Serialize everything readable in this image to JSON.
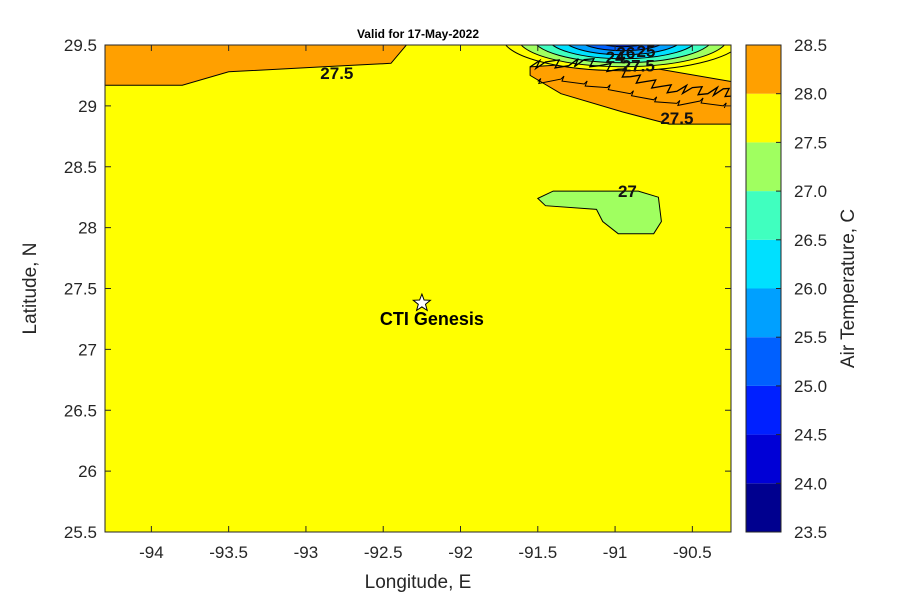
{
  "chart_data": {
    "type": "heatmap",
    "title": "Valid for 17-May-2022",
    "xlabel": "Longitude, E",
    "ylabel": "Latitude, N",
    "xlim": [
      -94.3,
      -90.25
    ],
    "ylim": [
      25.5,
      29.5
    ],
    "x_ticks": [
      -94,
      -93.5,
      -93,
      -92.5,
      -92,
      -91.5,
      -91,
      -90.5
    ],
    "y_ticks": [
      25.5,
      26,
      26.5,
      27,
      27.5,
      28,
      28.5,
      29,
      29.5
    ],
    "colorbar": {
      "label": "Air Temperature, C",
      "ticks": [
        23.5,
        24.0,
        24.5,
        25.0,
        25.5,
        26.0,
        26.5,
        27.0,
        27.5,
        28.0,
        28.5
      ],
      "tick_labels": [
        "23.5",
        "24.0",
        "24.5",
        "25.0",
        "25.5",
        "26.0",
        "26.5",
        "27.0",
        "27.5",
        "28.0",
        "28.5"
      ],
      "colors": [
        "#00008f",
        "#0000d6",
        "#0020ff",
        "#0060ff",
        "#00a0ff",
        "#00e0ff",
        "#40ffbf",
        "#a0ff60",
        "#ffff00",
        "#ffa000",
        "#ff5a00"
      ]
    },
    "background_level": "27.0–27.5",
    "regions": [
      {
        "level": "27.5–28.0",
        "color": "#ffa000",
        "polygon": [
          [
            -94.3,
            29.5
          ],
          [
            -92.35,
            29.5
          ],
          [
            -92.45,
            29.35
          ],
          [
            -92.9,
            29.32
          ],
          [
            -93.5,
            29.28
          ],
          [
            -93.8,
            29.17
          ],
          [
            -94.3,
            29.17
          ]
        ]
      },
      {
        "level": "27.5–28.0",
        "color": "#ffa000",
        "polygon": [
          [
            -91.55,
            29.32
          ],
          [
            -91.2,
            29.35
          ],
          [
            -90.8,
            29.32
          ],
          [
            -90.25,
            29.2
          ],
          [
            -90.25,
            28.85
          ],
          [
            -90.65,
            28.85
          ],
          [
            -90.95,
            28.95
          ],
          [
            -91.35,
            29.1
          ],
          [
            -91.55,
            29.25
          ]
        ]
      },
      {
        "level": "26.5–27.0",
        "color": "#a0ff60",
        "polygon": [
          [
            -91.4,
            28.3
          ],
          [
            -90.85,
            28.3
          ],
          [
            -90.72,
            28.25
          ],
          [
            -90.7,
            28.05
          ],
          [
            -90.75,
            27.95
          ],
          [
            -90.98,
            27.95
          ],
          [
            -91.08,
            28.05
          ],
          [
            -91.12,
            28.15
          ],
          [
            -91.45,
            28.18
          ],
          [
            -91.5,
            28.24
          ]
        ]
      }
    ],
    "contour_labels": [
      {
        "text": "27.5",
        "x": -92.8,
        "y": 29.27
      },
      {
        "text": "27.5",
        "x": -90.6,
        "y": 28.9
      },
      {
        "text": "27",
        "x": -90.92,
        "y": 28.3
      },
      {
        "text": "27.5",
        "x": -90.85,
        "y": 29.33
      },
      {
        "text": "24",
        "x": -91.0,
        "y": 29.4
      },
      {
        "text": "26",
        "x": -90.93,
        "y": 29.44
      },
      {
        "text": "25",
        "x": -90.8,
        "y": 29.45
      }
    ],
    "markers": [
      {
        "label": "CTI Genesis",
        "lon": -92.25,
        "lat": 27.38,
        "symbol": "star"
      }
    ]
  }
}
